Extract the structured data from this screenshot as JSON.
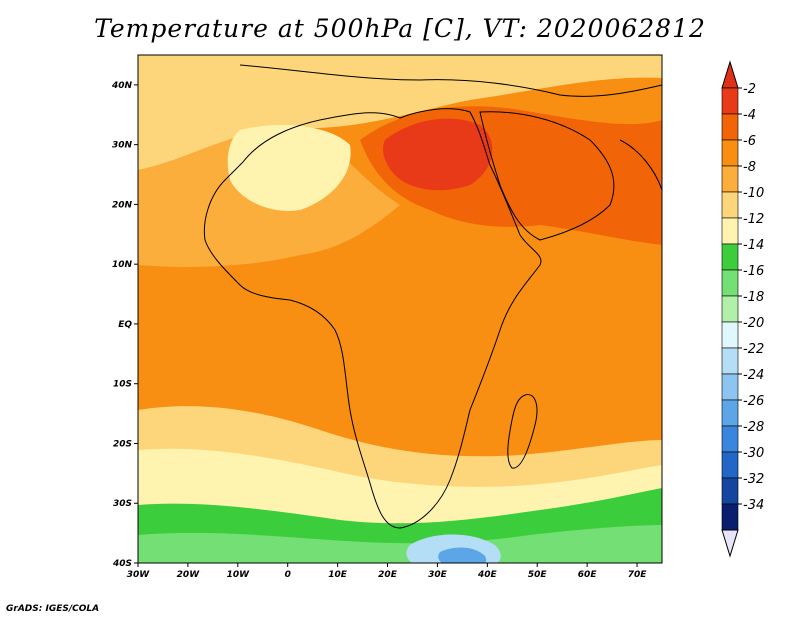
{
  "title": "Temperature at 500hPa [C], VT: 2020062812",
  "credit": "GrADS: IGES/COLA",
  "map": {
    "lon_range": [
      -30,
      75
    ],
    "lat_range": [
      -40,
      45
    ],
    "lon_ticks": [
      {
        "value": -30,
        "label": "30W"
      },
      {
        "value": -20,
        "label": "20W"
      },
      {
        "value": -10,
        "label": "10W"
      },
      {
        "value": 0,
        "label": "0"
      },
      {
        "value": 10,
        "label": "10E"
      },
      {
        "value": 20,
        "label": "20E"
      },
      {
        "value": 30,
        "label": "30E"
      },
      {
        "value": 40,
        "label": "40E"
      },
      {
        "value": 50,
        "label": "50E"
      },
      {
        "value": 60,
        "label": "60E"
      },
      {
        "value": 70,
        "label": "70E"
      }
    ],
    "lat_ticks": [
      {
        "value": 40,
        "label": "40N"
      },
      {
        "value": 30,
        "label": "30N"
      },
      {
        "value": 20,
        "label": "20N"
      },
      {
        "value": 10,
        "label": "10N"
      },
      {
        "value": 0,
        "label": "EQ"
      },
      {
        "value": -10,
        "label": "10S"
      },
      {
        "value": -20,
        "label": "20S"
      },
      {
        "value": -30,
        "label": "30S"
      },
      {
        "value": -40,
        "label": "40S"
      }
    ]
  },
  "colorbar": {
    "bins": [
      {
        "label": "-2",
        "color": "#e83a18"
      },
      {
        "label": "-4",
        "color": "#f26408"
      },
      {
        "label": "-6",
        "color": "#f88e12"
      },
      {
        "label": "-8",
        "color": "#fbae3c"
      },
      {
        "label": "-10",
        "color": "#fdd67c"
      },
      {
        "label": "-12",
        "color": "#fef4b0"
      },
      {
        "label": "-14",
        "color": "#3ccd3c"
      },
      {
        "label": "-16",
        "color": "#74df74"
      },
      {
        "label": "-18",
        "color": "#b0f0a8"
      },
      {
        "label": "-20",
        "color": "#e0f8fc"
      },
      {
        "label": "-22",
        "color": "#b4def6"
      },
      {
        "label": "-24",
        "color": "#8cc6f0"
      },
      {
        "label": "-26",
        "color": "#5ca6e8"
      },
      {
        "label": "-28",
        "color": "#3a86de"
      },
      {
        "label": "-30",
        "color": "#2266c8"
      },
      {
        "label": "-32",
        "color": "#1446a0"
      },
      {
        "label": "-34",
        "color": "#0a1e70"
      }
    ],
    "top_arrow_color": "#e03018",
    "bottom_arrow_color": "#e8e4fa"
  },
  "field_regions": [
    {
      "name": "north-cool-belt",
      "color": "#fdd67c"
    },
    {
      "name": "sahara-band",
      "color": "#fbae3c"
    },
    {
      "name": "central-warm-band",
      "color": "#f88e12"
    },
    {
      "name": "indian-ocean-warm",
      "color": "#f88e12"
    },
    {
      "name": "sahara-pale",
      "color": "#fef4b0"
    },
    {
      "name": "egypt-arabia-hot",
      "color": "#f26408"
    },
    {
      "name": "egypt-core",
      "color": "#e83a18"
    },
    {
      "name": "east-atlantic-warm",
      "color": "#f88e12"
    },
    {
      "name": "south-cool-band",
      "color": "#fdd67c"
    },
    {
      "name": "south-pale-band",
      "color": "#fef4b0"
    },
    {
      "name": "southern-ocean-green",
      "color": "#3ccd3c"
    },
    {
      "name": "southern-light-green",
      "color": "#74df74"
    },
    {
      "name": "southern-cold-pocket",
      "color": "#b4def6"
    },
    {
      "name": "southern-cold-core",
      "color": "#5ca6e8"
    }
  ]
}
